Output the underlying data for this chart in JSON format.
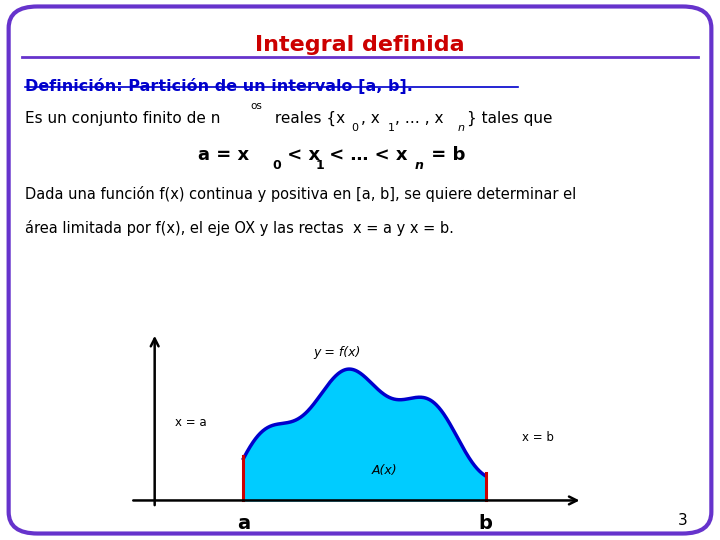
{
  "title": "Integral definida",
  "title_color": "#CC0000",
  "background_color": "#FFFFFF",
  "border_color": "#6633CC",
  "border_linewidth": 3,
  "def_text": "Definición: Partición de un intervalo [a, b].",
  "def_color": "#0000CC",
  "para_text1": "Dada una función f(x) continua y positiva en [a, b], se quiere determinar el",
  "para_text2": "área limitada por f(x), el eje OX y las rectas  x = a y x = b.",
  "page_number": "3",
  "curve_color": "#0000CC",
  "fill_color": "#00CCFF",
  "vline_color": "#CC0000",
  "axis_color": "#000000"
}
